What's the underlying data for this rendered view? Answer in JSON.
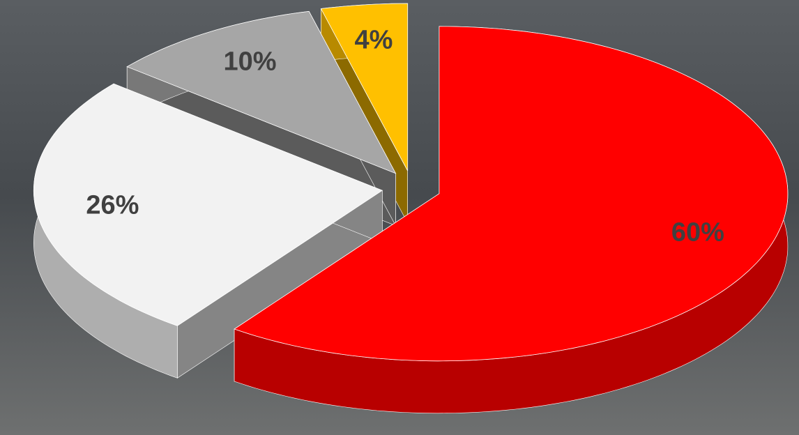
{
  "chart_data": {
    "type": "pie3d",
    "categories": [
      null,
      null,
      null,
      null
    ],
    "values": [
      60,
      26,
      10,
      4
    ],
    "value_labels": [
      "60%",
      "26%",
      "10%",
      "4%"
    ],
    "colors": [
      "#ff0000",
      "#f2f2f2",
      "#a6a6a6",
      "#ffc000"
    ]
  }
}
